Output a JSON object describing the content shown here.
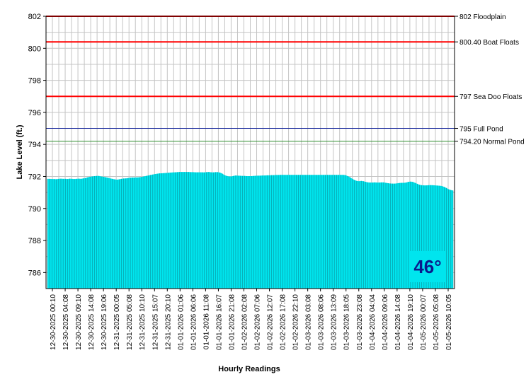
{
  "chart_data": {
    "type": "area",
    "title": "",
    "xlabel": "Hourly Readings",
    "ylabel": "Lake Level (ft.)",
    "ylim": [
      785,
      802
    ],
    "yticks": [
      786,
      788,
      790,
      792,
      794,
      796,
      798,
      800,
      802
    ],
    "grid": true,
    "x_tick_labels": [
      "12-30-2025 00:10",
      "12-30-2025 04:08",
      "12-30-2025 09:10",
      "12-30-2025 14:08",
      "12-30-2025 19:06",
      "12-31-2025 00:05",
      "12-31-2025 05:08",
      "12-31-2025 10:10",
      "12-31-2025 15:07",
      "12-31-2025 20:10",
      "01-01-2026 01:06",
      "01-01-2026 06:06",
      "01-01-2026 11:08",
      "01-01-2026 16:07",
      "01-01-2026 21:08",
      "01-02-2026 02:08",
      "01-02-2026 07:06",
      "01-02-2026 12:07",
      "01-02-2026 17:08",
      "01-02-2026 22:10",
      "01-03-2026 03:08",
      "01-03-2026 08:06",
      "01-03-2026 13:09",
      "01-03-2026 18:05",
      "01-03-2026 23:08",
      "01-04-2026 04:04",
      "01-04-2026 09:06",
      "01-04-2026 14:08",
      "01-04-2026 19:10",
      "01-05-2026 00:07",
      "01-05-2026 05:08",
      "01-05-2026 10:05"
    ],
    "series": [
      {
        "name": "",
        "color": "#00e5ee",
        "values": [
          791.85,
          791.85,
          791.84,
          791.84,
          791.83,
          791.85,
          791.86,
          791.85,
          791.85,
          791.84,
          791.86,
          791.85,
          791.84,
          791.85,
          791.86,
          791.85,
          791.88,
          791.9,
          791.95,
          791.98,
          792.0,
          792.02,
          792.03,
          792.03,
          792.0,
          791.98,
          791.95,
          791.92,
          791.88,
          791.85,
          791.82,
          791.8,
          791.82,
          791.85,
          791.87,
          791.88,
          791.9,
          791.92,
          791.93,
          791.93,
          791.94,
          791.95,
          791.97,
          792.0,
          792.03,
          792.06,
          792.09,
          792.12,
          792.15,
          792.17,
          792.19,
          792.2,
          792.21,
          792.22,
          792.23,
          792.24,
          792.25,
          792.26,
          792.27,
          792.28,
          792.28,
          792.28,
          792.28,
          792.28,
          792.27,
          792.27,
          792.26,
          792.26,
          792.26,
          792.26,
          792.25,
          792.27,
          792.28,
          792.26,
          792.25,
          792.27,
          792.27,
          792.24,
          792.18,
          792.08,
          792.03,
          792.0,
          792.0,
          792.03,
          792.06,
          792.05,
          792.04,
          792.03,
          792.03,
          792.02,
          792.02,
          792.02,
          792.03,
          792.04,
          792.05,
          792.05,
          792.06,
          792.06,
          792.07,
          792.07,
          792.08,
          792.08,
          792.09,
          792.09,
          792.1,
          792.1,
          792.1,
          792.1,
          792.1,
          792.1,
          792.1,
          792.1,
          792.1,
          792.1,
          792.1,
          792.1,
          792.1,
          792.1,
          792.1,
          792.1,
          792.1,
          792.1,
          792.1,
          792.1,
          792.1,
          792.1,
          792.1,
          792.1,
          792.1,
          792.1,
          792.1,
          792.1,
          792.1,
          792.08,
          792.02,
          791.95,
          791.86,
          791.78,
          791.72,
          791.7,
          791.72,
          791.7,
          791.66,
          791.63,
          791.62,
          791.62,
          791.63,
          791.62,
          791.62,
          791.63,
          791.63,
          791.6,
          791.58,
          791.56,
          791.55,
          791.55,
          791.57,
          791.59,
          791.6,
          791.6,
          791.62,
          791.66,
          791.68,
          791.66,
          791.6,
          791.54,
          791.48,
          791.45,
          791.44,
          791.44,
          791.45,
          791.46,
          791.45,
          791.44,
          791.43,
          791.42,
          791.4,
          791.35,
          791.28,
          791.2,
          791.15,
          791.12
        ]
      }
    ],
    "reference_lines": [
      {
        "value": 802,
        "label": "802 Floodplain",
        "color": "#ff0000"
      },
      {
        "value": 800.4,
        "label": "800.40 Boat Floats",
        "color": "#ff0000"
      },
      {
        "value": 797,
        "label": "797 Sea Doo Floats",
        "color": "#ff0000"
      },
      {
        "value": 795,
        "label": "795 Full Pond",
        "color": "#1a2a9c"
      },
      {
        "value": 794.2,
        "label": "794.20 Normal Pond",
        "color": "#2e8b2e"
      }
    ],
    "annotation": "46°"
  }
}
